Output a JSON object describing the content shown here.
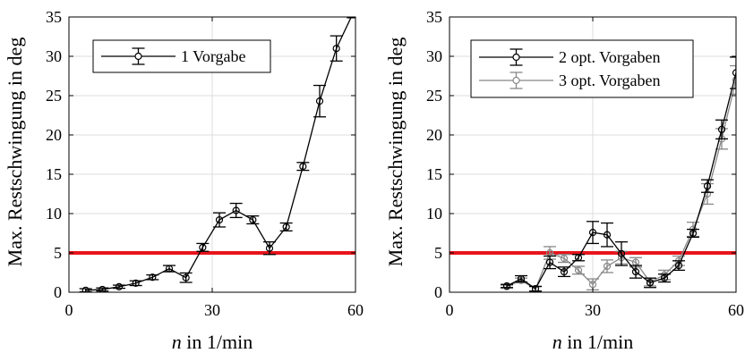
{
  "chart_data": [
    {
      "type": "line",
      "xlabel": {
        "italic": "n",
        "rest": " in 1/min"
      },
      "ylabel": "Max. Restschwingung in deg",
      "xlim": [
        0,
        60
      ],
      "ylim": [
        0,
        35
      ],
      "xticks": [
        0,
        30,
        60
      ],
      "yticks": [
        0,
        5,
        10,
        15,
        20,
        25,
        30,
        35
      ],
      "grid": true,
      "legend_position": "top-left",
      "threshold": {
        "y": 5,
        "color": "#e8141c"
      },
      "series": [
        {
          "name": "1 Vorgabe",
          "color": "#000000",
          "x": [
            3.5,
            7,
            10.5,
            14,
            17.5,
            21,
            24.5,
            28,
            31.5,
            35,
            38.5,
            42,
            45.5,
            49,
            52.5,
            56,
            59.5
          ],
          "y": [
            0.25,
            0.35,
            0.7,
            1.15,
            1.9,
            3.0,
            1.85,
            5.7,
            9.2,
            10.4,
            9.2,
            5.6,
            8.3,
            16.0,
            24.3,
            31.0,
            35.5
          ],
          "err": [
            0.2,
            0.2,
            0.2,
            0.3,
            0.3,
            0.4,
            0.6,
            0.5,
            0.9,
            0.9,
            0.5,
            0.8,
            0.5,
            0.5,
            2.0,
            1.6,
            0.6
          ]
        }
      ]
    },
    {
      "type": "line",
      "xlabel": {
        "italic": "n",
        "rest": " in 1/min"
      },
      "ylabel": "Max. Restschwingung in deg",
      "xlim": [
        0,
        60
      ],
      "ylim": [
        0,
        35
      ],
      "xticks": [
        0,
        30,
        60
      ],
      "yticks": [
        0,
        5,
        10,
        15,
        20,
        25,
        30,
        35
      ],
      "grid": true,
      "legend_position": "top-left",
      "threshold": {
        "y": 5,
        "color": "#e8141c"
      },
      "series": [
        {
          "name": "2 opt. Vorgaben",
          "color": "#000000",
          "x": [
            12,
            15,
            18,
            21,
            24,
            27,
            30,
            33,
            36,
            39,
            42,
            45,
            48,
            51,
            54,
            57,
            60
          ],
          "y": [
            0.8,
            1.7,
            0.45,
            3.8,
            2.6,
            4.4,
            7.6,
            7.3,
            4.9,
            2.6,
            1.2,
            1.8,
            3.4,
            7.5,
            13.5,
            20.7,
            27.9
          ],
          "err": [
            0.2,
            0.4,
            0.3,
            0.8,
            0.6,
            0.4,
            1.4,
            1.5,
            1.5,
            0.8,
            0.6,
            0.5,
            0.6,
            0.5,
            0.8,
            1.2,
            2.0
          ]
        },
        {
          "name": "3 opt. Vorgaben",
          "color": "#888888",
          "x": [
            12,
            15,
            18,
            21,
            24,
            27,
            30,
            33,
            36,
            39,
            42,
            45,
            48,
            51,
            54,
            57,
            60
          ],
          "y": [
            0.7,
            1.5,
            0.4,
            5.0,
            4.3,
            2.8,
            1.0,
            3.3,
            4.4,
            3.8,
            1.3,
            2.2,
            4.0,
            8.0,
            12.5,
            19.5,
            27.0
          ],
          "err": [
            0.2,
            0.3,
            0.3,
            0.8,
            0.5,
            0.5,
            0.7,
            0.8,
            0.8,
            0.6,
            0.5,
            0.6,
            0.6,
            0.9,
            1.3,
            1.3,
            1.8
          ]
        }
      ]
    }
  ]
}
